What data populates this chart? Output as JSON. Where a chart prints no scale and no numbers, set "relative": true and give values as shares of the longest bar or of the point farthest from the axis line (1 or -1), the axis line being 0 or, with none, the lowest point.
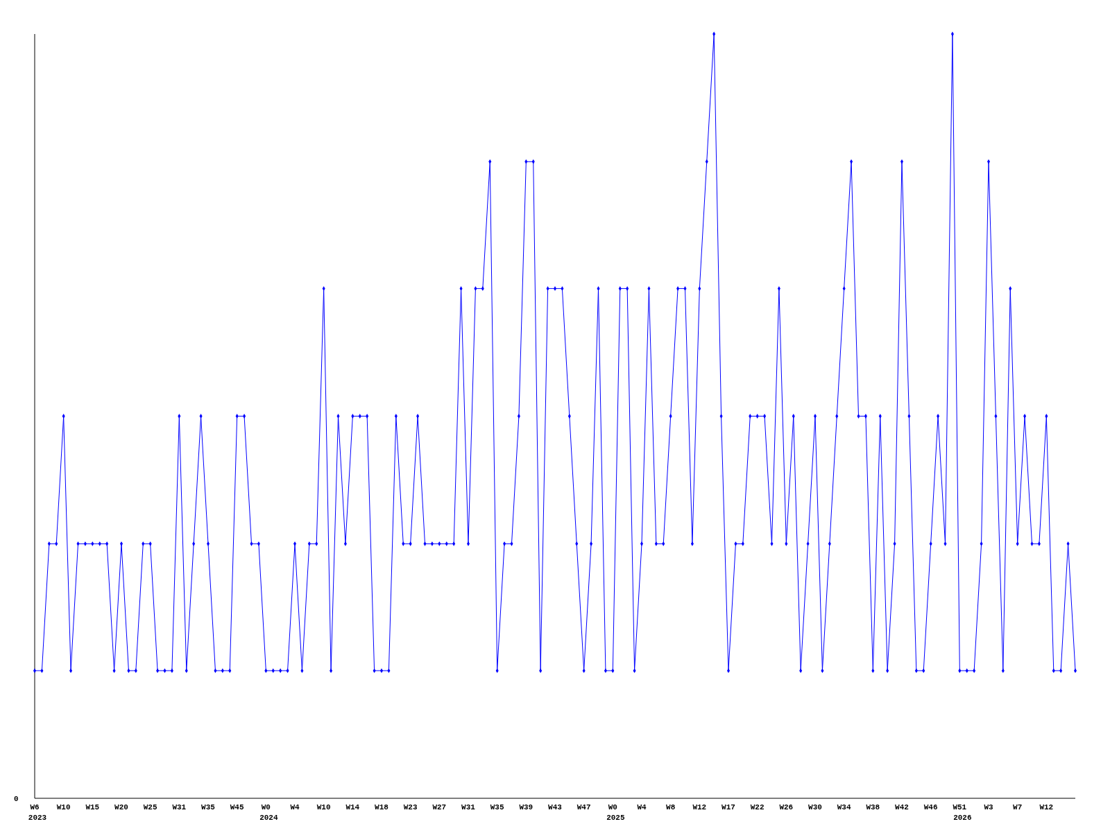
{
  "chart_data": {
    "type": "line",
    "relative": true,
    "marker": "diamond",
    "line_style": "solid",
    "annotations": [
      "0"
    ],
    "categories": [
      "W6\n2023",
      null,
      null,
      null,
      "W10",
      null,
      null,
      null,
      "W15",
      null,
      null,
      null,
      "W20",
      null,
      null,
      null,
      "W25",
      null,
      null,
      null,
      "W31",
      null,
      null,
      null,
      "W35",
      null,
      null,
      null,
      "W45",
      null,
      null,
      null,
      "W0\n2024",
      null,
      null,
      null,
      "W4",
      null,
      null,
      null,
      "W10",
      null,
      null,
      null,
      "W14",
      null,
      null,
      null,
      "W18",
      null,
      null,
      null,
      "W23",
      null,
      null,
      null,
      "W27",
      null,
      null,
      null,
      "W31",
      null,
      null,
      null,
      "W35",
      null,
      null,
      null,
      "W39",
      null,
      null,
      null,
      "W43",
      null,
      null,
      null,
      "W47",
      null,
      null,
      null,
      "W0\n2025",
      null,
      null,
      null,
      "W4",
      null,
      null,
      null,
      "W8",
      null,
      null,
      null,
      "W12",
      null,
      null,
      null,
      "W17",
      null,
      null,
      null,
      "W22",
      null,
      null,
      null,
      "W26",
      null,
      null,
      null,
      "W30",
      null,
      null,
      null,
      "W34",
      null,
      null,
      null,
      "W38",
      null,
      null,
      null,
      "W42",
      null,
      null,
      null,
      "W46",
      null,
      null,
      null,
      "W51\n2026",
      null,
      null,
      null,
      "W3",
      null,
      null,
      null,
      "W7",
      null,
      null,
      null,
      "W12",
      null,
      null,
      null,
      null
    ],
    "series": [
      {
        "color": "#0000ff",
        "values": [
          0.167,
          0.167,
          0.333,
          0.333,
          0.5,
          0.167,
          0.333,
          0.333,
          0.333,
          0.333,
          0.333,
          0.167,
          0.333,
          0.167,
          0.167,
          0.333,
          0.333,
          0.167,
          0.167,
          0.167,
          0.5,
          0.167,
          0.333,
          0.5,
          0.333,
          0.167,
          0.167,
          0.167,
          0.5,
          0.5,
          0.333,
          0.333,
          0.167,
          0.167,
          0.167,
          0.167,
          0.333,
          0.167,
          0.333,
          0.333,
          0.667,
          0.167,
          0.5,
          0.333,
          0.5,
          0.5,
          0.5,
          0.167,
          0.167,
          0.167,
          0.5,
          0.333,
          0.333,
          0.5,
          0.333,
          0.333,
          0.333,
          0.333,
          0.333,
          0.667,
          0.333,
          0.667,
          0.667,
          0.833,
          0.167,
          0.333,
          0.333,
          0.5,
          0.833,
          0.833,
          0.167,
          0.667,
          0.667,
          0.667,
          0.5,
          0.333,
          0.167,
          0.333,
          0.667,
          0.167,
          0.167,
          0.667,
          0.667,
          0.167,
          0.333,
          0.667,
          0.333,
          0.333,
          0.5,
          0.667,
          0.667,
          0.333,
          0.667,
          0.833,
          1,
          0.5,
          0.167,
          0.333,
          0.333,
          0.5,
          0.5,
          0.5,
          0.333,
          0.667,
          0.333,
          0.5,
          0.167,
          0.333,
          0.5,
          0.167,
          0.333,
          0.5,
          0.667,
          0.833,
          0.5,
          0.5,
          0.167,
          0.5,
          0.167,
          0.333,
          0.833,
          0.5,
          0.167,
          0.167,
          0.333,
          0.5,
          0.333,
          1,
          0.167,
          0.167,
          0.167,
          0.333,
          0.833,
          0.5,
          0.167,
          0.667,
          0.333,
          0.5,
          0.333,
          0.333,
          0.5,
          0.167,
          0.167,
          0.333,
          0.167
        ]
      }
    ]
  }
}
